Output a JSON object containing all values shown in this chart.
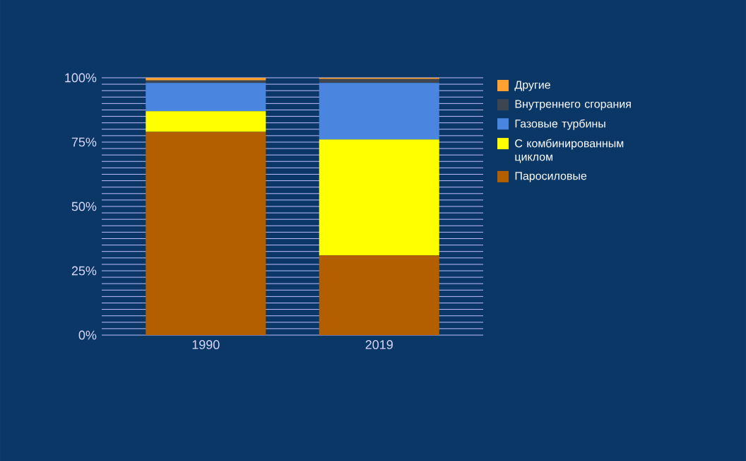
{
  "chart_data": {
    "type": "bar",
    "stacked": true,
    "categories": [
      "1990",
      "2019"
    ],
    "series": [
      {
        "name": "Паросиловые",
        "color": "#b35f00",
        "values": [
          79,
          31
        ]
      },
      {
        "name": "С комбинированным циклом",
        "color": "#ffff00",
        "values": [
          8,
          45
        ]
      },
      {
        "name": "Газовые турбины",
        "color": "#4a86e0",
        "values": [
          11,
          22
        ]
      },
      {
        "name": "Внутреннего сгорания",
        "color": "#3d4650",
        "values": [
          1,
          1.5
        ]
      },
      {
        "name": "Другие",
        "color": "#ffa030",
        "values": [
          1,
          0.5
        ]
      }
    ],
    "ylim": [
      0,
      100
    ],
    "yticks": [
      {
        "value": 0,
        "label": "0%"
      },
      {
        "value": 2.5,
        "label": null
      },
      {
        "value": 5,
        "label": null
      },
      {
        "value": 7.5,
        "label": null
      },
      {
        "value": 10,
        "label": null
      },
      {
        "value": 12.5,
        "label": null
      },
      {
        "value": 15,
        "label": null
      },
      {
        "value": 17.5,
        "label": null
      },
      {
        "value": 20,
        "label": null
      },
      {
        "value": 22.5,
        "label": null
      },
      {
        "value": 25,
        "label": "25%"
      },
      {
        "value": 27.5,
        "label": null
      },
      {
        "value": 30,
        "label": null
      },
      {
        "value": 32.5,
        "label": null
      },
      {
        "value": 35,
        "label": null
      },
      {
        "value": 37.5,
        "label": null
      },
      {
        "value": 40,
        "label": null
      },
      {
        "value": 42.5,
        "label": null
      },
      {
        "value": 45,
        "label": null
      },
      {
        "value": 47.5,
        "label": null
      },
      {
        "value": 50,
        "label": "50%"
      },
      {
        "value": 52.5,
        "label": null
      },
      {
        "value": 55,
        "label": null
      },
      {
        "value": 57.5,
        "label": null
      },
      {
        "value": 60,
        "label": null
      },
      {
        "value": 62.5,
        "label": null
      },
      {
        "value": 65,
        "label": null
      },
      {
        "value": 67.5,
        "label": null
      },
      {
        "value": 70,
        "label": null
      },
      {
        "value": 72.5,
        "label": null
      },
      {
        "value": 75,
        "label": "75%"
      },
      {
        "value": 77.5,
        "label": null
      },
      {
        "value": 80,
        "label": null
      },
      {
        "value": 82.5,
        "label": null
      },
      {
        "value": 85,
        "label": null
      },
      {
        "value": 87.5,
        "label": null
      },
      {
        "value": 90,
        "label": null
      },
      {
        "value": 92.5,
        "label": null
      },
      {
        "value": 95,
        "label": null
      },
      {
        "value": 97.5,
        "label": null
      },
      {
        "value": 100,
        "label": "100%"
      }
    ],
    "grid": "y",
    "legend": "right"
  }
}
